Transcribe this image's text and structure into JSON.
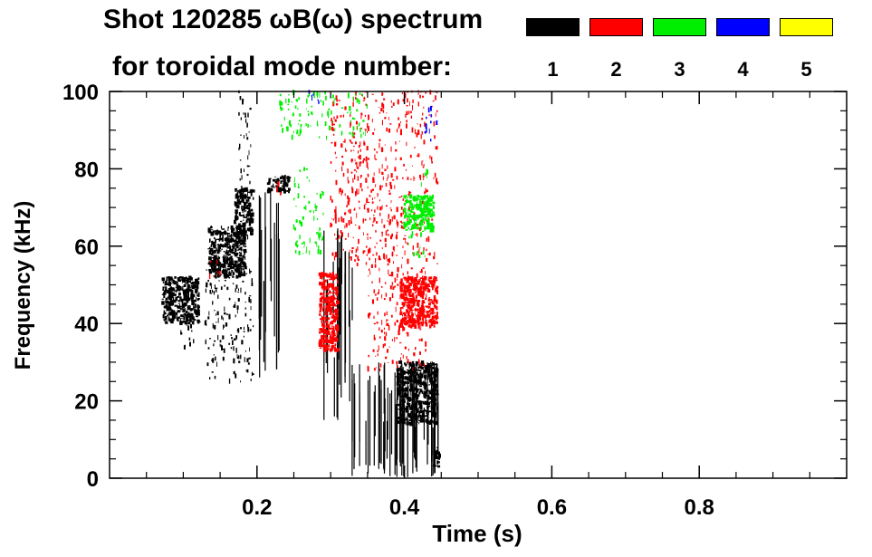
{
  "chart_data": {
    "type": "heatmap",
    "title_line1": "Shot 120285 ωB(ω) spectrum",
    "title_line2": "for toroidal mode number:",
    "xlabel": "Time (s)",
    "ylabel": "Frequency (kHz)",
    "xlim": [
      0.0,
      1.0
    ],
    "ylim": [
      0,
      100
    ],
    "x_ticks": [
      0.2,
      0.4,
      0.6,
      0.8
    ],
    "x_tick_labels": [
      "0.2",
      "0.4",
      "0.6",
      "0.8"
    ],
    "x_minor_step": 0.05,
    "y_ticks": [
      0,
      20,
      40,
      60,
      80,
      100
    ],
    "y_tick_labels": [
      "0",
      "20",
      "40",
      "60",
      "80",
      "100"
    ],
    "y_minor_step": 5,
    "legend": [
      {
        "mode": "1",
        "color": "#000000"
      },
      {
        "mode": "2",
        "color": "#ff0000"
      },
      {
        "mode": "3",
        "color": "#00ee00"
      },
      {
        "mode": "4",
        "color": "#0000ff"
      },
      {
        "mode": "5",
        "color": "#ffff00"
      }
    ],
    "regions": [
      {
        "mode": 1,
        "t": [
          0.072,
          0.122
        ],
        "f": [
          40,
          52
        ],
        "density": "dense"
      },
      {
        "mode": 1,
        "t": [
          0.095,
          0.115
        ],
        "f": [
          33,
          42
        ],
        "density": "sparse"
      },
      {
        "mode": 1,
        "t": [
          0.135,
          0.185
        ],
        "f": [
          52,
          65
        ],
        "density": "dense"
      },
      {
        "mode": 1,
        "t": [
          0.17,
          0.195
        ],
        "f": [
          62,
          75
        ],
        "density": "dense"
      },
      {
        "mode": 1,
        "t": [
          0.13,
          0.195
        ],
        "f": [
          25,
          55
        ],
        "density": "sparse"
      },
      {
        "mode": 1,
        "t": [
          0.175,
          0.192
        ],
        "f": [
          75,
          100
        ],
        "density": "sparse"
      },
      {
        "mode": 1,
        "t": [
          0.2,
          0.23
        ],
        "f": [
          25,
          75
        ],
        "density": "streaks"
      },
      {
        "mode": 1,
        "t": [
          0.215,
          0.245
        ],
        "f": [
          74,
          78
        ],
        "density": "dense"
      },
      {
        "mode": 1,
        "t": [
          0.29,
          0.33
        ],
        "f": [
          15,
          65
        ],
        "density": "streaks"
      },
      {
        "mode": 1,
        "t": [
          0.325,
          0.445
        ],
        "f": [
          0,
          30
        ],
        "density": "streaks"
      },
      {
        "mode": 1,
        "t": [
          0.39,
          0.445
        ],
        "f": [
          14,
          30
        ],
        "density": "dense"
      },
      {
        "mode": 1,
        "t": [
          0.44,
          0.448
        ],
        "f": [
          3,
          8
        ],
        "density": "dense"
      },
      {
        "mode": 2,
        "t": [
          0.285,
          0.31
        ],
        "f": [
          33,
          53
        ],
        "density": "dense"
      },
      {
        "mode": 2,
        "t": [
          0.395,
          0.445
        ],
        "f": [
          39,
          52
        ],
        "density": "dense"
      },
      {
        "mode": 2,
        "t": [
          0.3,
          0.445
        ],
        "f": [
          55,
          100
        ],
        "density": "sparse"
      },
      {
        "mode": 2,
        "t": [
          0.35,
          0.43
        ],
        "f": [
          28,
          55
        ],
        "density": "sparse"
      },
      {
        "mode": 2,
        "t": [
          0.135,
          0.15
        ],
        "f": [
          52,
          57
        ],
        "density": "sparse"
      },
      {
        "mode": 2,
        "t": [
          0.225,
          0.235
        ],
        "f": [
          73,
          79
        ],
        "density": "sparse"
      },
      {
        "mode": 3,
        "t": [
          0.4,
          0.44
        ],
        "f": [
          64,
          73
        ],
        "density": "dense"
      },
      {
        "mode": 3,
        "t": [
          0.405,
          0.43
        ],
        "f": [
          57,
          64
        ],
        "density": "sparse"
      },
      {
        "mode": 3,
        "t": [
          0.23,
          0.35
        ],
        "f": [
          88,
          100
        ],
        "density": "sparse"
      },
      {
        "mode": 3,
        "t": [
          0.25,
          0.29
        ],
        "f": [
          58,
          80
        ],
        "density": "sparse"
      },
      {
        "mode": 3,
        "t": [
          0.42,
          0.432
        ],
        "f": [
          75,
          80
        ],
        "density": "sparse"
      },
      {
        "mode": 4,
        "t": [
          0.428,
          0.445
        ],
        "f": [
          87,
          96
        ],
        "density": "sparse"
      },
      {
        "mode": 4,
        "t": [
          0.27,
          0.285
        ],
        "f": [
          95,
          100
        ],
        "density": "sparse"
      }
    ]
  }
}
